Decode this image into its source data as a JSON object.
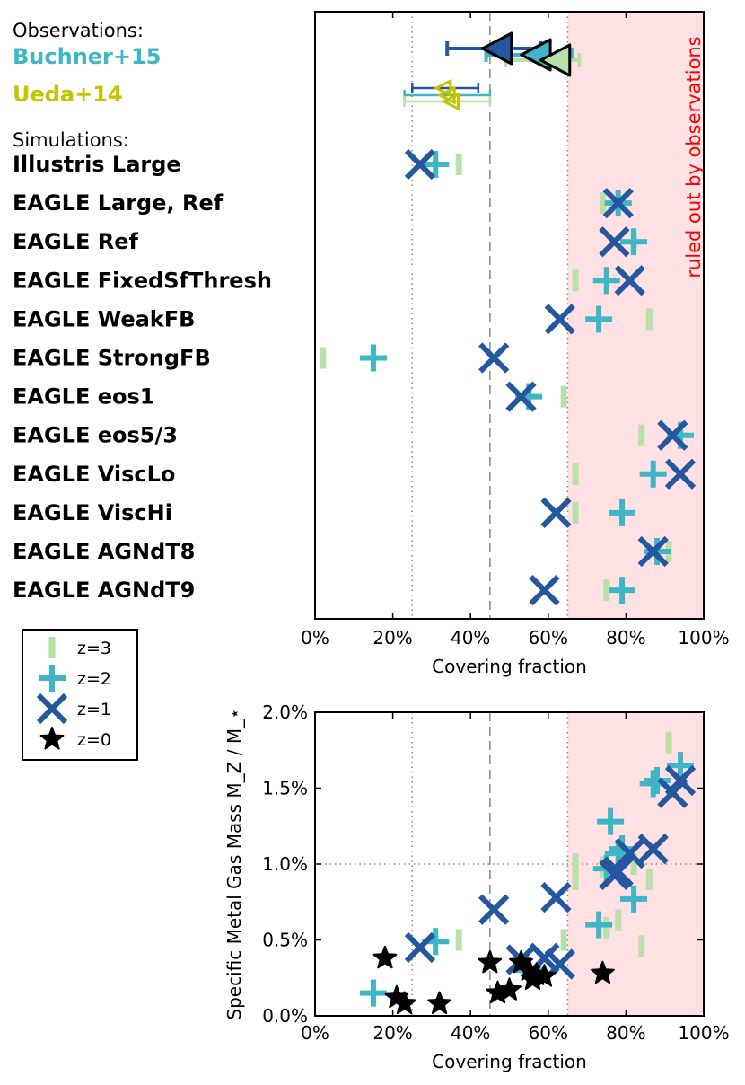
{
  "colors": {
    "z3": "#b8e0a8",
    "z2": "#3eb6c6",
    "z1": "#2457a0",
    "z0": "#000000",
    "buchner": "#3eb6c6",
    "ueda": "#c3c300",
    "ruled_out_fill": "#ffe0e3",
    "ruled_out_text": "#ff0000"
  },
  "labels": {
    "observations_header": "Observations:",
    "simulations_header": "Simulations:",
    "ruled_out": "ruled out by observations"
  },
  "legend": {
    "items": [
      {
        "label": "z=3",
        "marker": "vbar",
        "series": "z3"
      },
      {
        "label": "z=2",
        "marker": "plus",
        "series": "z2"
      },
      {
        "label": "z=1",
        "marker": "cross",
        "series": "z1"
      },
      {
        "label": "z=0",
        "marker": "star",
        "series": "z0"
      }
    ]
  },
  "chart_data": [
    {
      "type": "scatter",
      "title": "",
      "xlabel": "Covering fraction",
      "ylabel": "",
      "xlim": [
        0,
        100
      ],
      "x_ticks": [
        "0%",
        "20%",
        "40%",
        "60%",
        "80%",
        "100%"
      ],
      "reference_lines": {
        "dotted": [
          25,
          65
        ],
        "dashed": [
          45
        ]
      },
      "ruled_out_region": [
        65,
        100
      ],
      "observations": [
        {
          "name": "Buchner+15",
          "color": "buchner",
          "points": [
            {
              "x": 47,
              "xerr": [
                34,
                58
              ],
              "series": "z1"
            },
            {
              "x": 57,
              "xerr": [
                44,
                66
              ],
              "series": "z2"
            },
            {
              "x": 62,
              "xerr": [
                49,
                68
              ],
              "series": "z3"
            }
          ]
        },
        {
          "name": "Ueda+14",
          "color": "ueda",
          "points": [
            {
              "x": 33,
              "xerr": [
                25,
                42
              ],
              "series": "z1"
            },
            {
              "x": 34,
              "xerr": [
                23,
                45
              ],
              "series": "z2"
            },
            {
              "x": 35,
              "xerr": [
                23,
                45
              ],
              "series": "z3"
            }
          ]
        }
      ],
      "simulations": [
        {
          "name": "Illustris Large",
          "z3": 37,
          "z2": 31,
          "z1": 27
        },
        {
          "name": "EAGLE Large, Ref",
          "z3": 74,
          "z2": 78,
          "z1": 78
        },
        {
          "name": "EAGLE Ref",
          "z3": 82,
          "z2": 82,
          "z1": 77
        },
        {
          "name": "EAGLE FixedSfThresh",
          "z3": 67,
          "z2": 75,
          "z1": 81
        },
        {
          "name": "EAGLE WeakFB",
          "z3": 86,
          "z2": 73,
          "z1": 63
        },
        {
          "name": "EAGLE StrongFB",
          "z3": 2,
          "z2": 15,
          "z1": 46
        },
        {
          "name": "EAGLE eos1",
          "z3": 64,
          "z2": 55,
          "z1": 53
        },
        {
          "name": "EAGLE eos5/3",
          "z3": 84,
          "z2": 94,
          "z1": 92
        },
        {
          "name": "EAGLE ViscLo",
          "z3": 67,
          "z2": 87,
          "z1": 94
        },
        {
          "name": "EAGLE ViscHi",
          "z3": 67,
          "z2": 79,
          "z1": 62
        },
        {
          "name": "EAGLE AGNdT8",
          "z3": 91,
          "z2": 88,
          "z1": 87
        },
        {
          "name": "EAGLE AGNdT9",
          "z3": 75,
          "z2": 79,
          "z1": 59
        }
      ]
    },
    {
      "type": "scatter",
      "title": "",
      "xlabel": "Covering fraction",
      "ylabel": "Specific Metal Gas Mass M_Z / M_⋆",
      "xlim": [
        0,
        100
      ],
      "ylim": [
        0,
        2.0
      ],
      "x_ticks": [
        "0%",
        "20%",
        "40%",
        "60%",
        "80%",
        "100%"
      ],
      "y_ticks": [
        "0.0%",
        "0.5%",
        "1.0%",
        "1.5%",
        "2.0%"
      ],
      "reference_lines": {
        "dotted_x": [
          25,
          65
        ],
        "dashed_x": [
          45
        ],
        "dotted_y": [
          1.0
        ]
      },
      "ruled_out_region": [
        65,
        100
      ],
      "series": [
        {
          "name": "z=3",
          "key": "z3",
          "points": [
            [
              37,
              0.5
            ],
            [
              74,
              0.98
            ],
            [
              82,
              1.0
            ],
            [
              67,
              1.0
            ],
            [
              86,
              0.9
            ],
            [
              64,
              0.5
            ],
            [
              84,
              0.46
            ],
            [
              67,
              0.9
            ],
            [
              67,
              0.9
            ],
            [
              91,
              1.8
            ],
            [
              75,
              0.58
            ],
            [
              78,
              0.63
            ]
          ]
        },
        {
          "name": "z=2",
          "key": "z2",
          "points": [
            [
              31,
              0.49
            ],
            [
              15,
              0.15
            ],
            [
              55,
              0.3
            ],
            [
              73,
              0.6
            ],
            [
              82,
              0.77
            ],
            [
              75,
              0.97
            ],
            [
              76,
              1.28
            ],
            [
              79,
              1.1
            ],
            [
              87,
              1.53
            ],
            [
              88,
              1.55
            ],
            [
              94,
              1.65
            ],
            [
              78,
              1.07
            ]
          ]
        },
        {
          "name": "z=1",
          "key": "z1",
          "points": [
            [
              27,
              0.45
            ],
            [
              46,
              0.7
            ],
            [
              53,
              0.37
            ],
            [
              59,
              0.38
            ],
            [
              62,
              0.78
            ],
            [
              63,
              0.34
            ],
            [
              77,
              0.93
            ],
            [
              78,
              0.95
            ],
            [
              81,
              1.07
            ],
            [
              87,
              1.1
            ],
            [
              92,
              1.47
            ],
            [
              94,
              1.55
            ]
          ]
        },
        {
          "name": "z=0",
          "key": "z0",
          "points": [
            [
              18,
              0.38
            ],
            [
              21,
              0.12
            ],
            [
              23,
              0.08
            ],
            [
              32,
              0.08
            ],
            [
              45,
              0.35
            ],
            [
              47,
              0.15
            ],
            [
              50,
              0.17
            ],
            [
              53,
              0.35
            ],
            [
              55,
              0.3
            ],
            [
              56,
              0.24
            ],
            [
              57,
              0.27
            ],
            [
              59,
              0.26
            ],
            [
              74,
              0.28
            ]
          ]
        }
      ]
    }
  ]
}
